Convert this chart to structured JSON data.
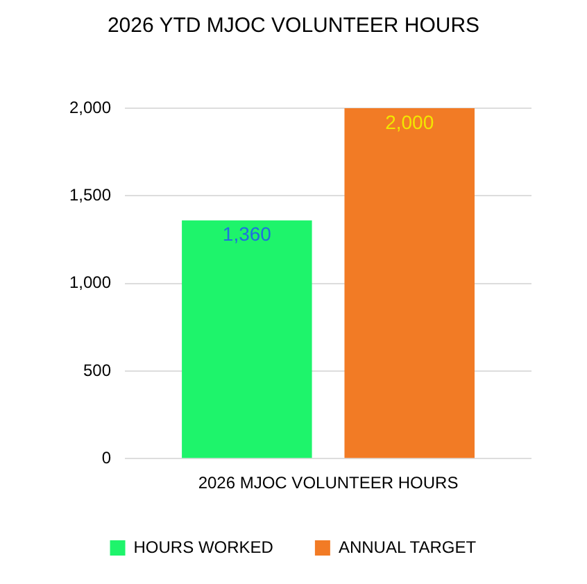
{
  "chart_data": {
    "type": "bar",
    "title": "2026 YTD MJOC VOLUNTEER HOURS",
    "categories": [
      "2026 MJOC VOLUNTEER HOURS"
    ],
    "series": [
      {
        "name": "HOURS WORKED",
        "color": "#1ef46b",
        "values": [
          1360
        ],
        "value_labels": [
          "1,360"
        ]
      },
      {
        "name": "ANNUAL TARGET",
        "color": "#f27b25",
        "values": [
          2000
        ],
        "value_labels": [
          "2,000"
        ]
      }
    ],
    "ylim": [
      0,
      2000
    ],
    "yticks": [
      0,
      500,
      {
        "value": 1000,
        "label": "1,000"
      },
      {
        "value": 1500,
        "label": "1,500"
      },
      {
        "value": 2000,
        "label": "2,000"
      }
    ],
    "grid": "y",
    "legend": "bottom"
  }
}
